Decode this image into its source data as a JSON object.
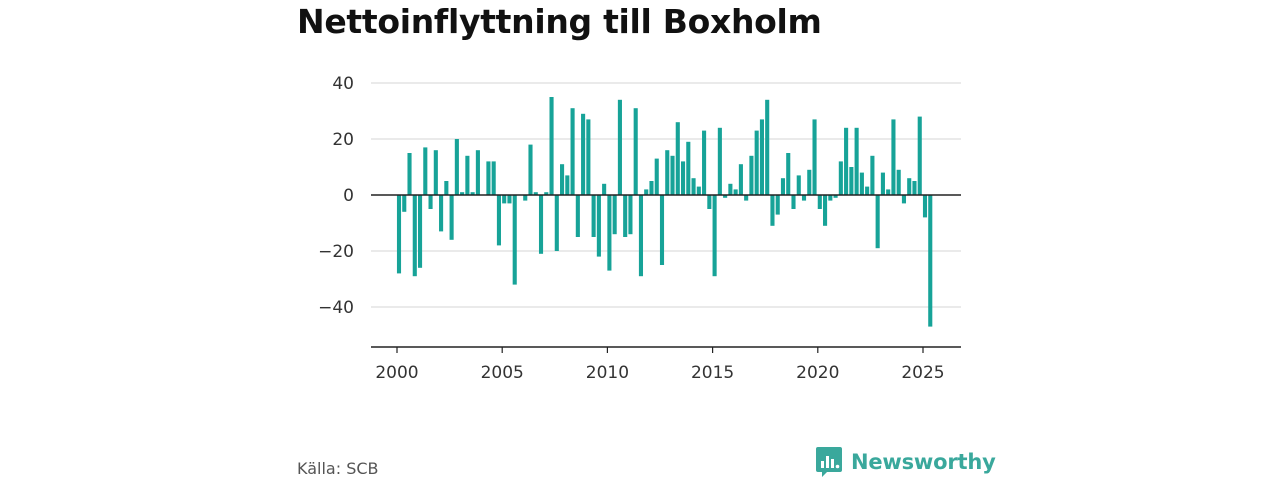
{
  "title": "Nettoinflyttning till Boxholm",
  "source": "Källa: SCB",
  "brand": "Newsworthy",
  "colors": {
    "bar": "#17a398",
    "grid": "#d6d6d6",
    "axis": "#222222",
    "brand": "#3aa89c"
  },
  "chart_data": {
    "type": "bar",
    "title": "Nettoinflyttning till Boxholm",
    "xlabel": "",
    "ylabel": "",
    "ylim": [
      -50,
      45
    ],
    "xlim": [
      2000,
      2025.5
    ],
    "grid": true,
    "x_ticks": [
      "2000",
      "2005",
      "2010",
      "2015",
      "2020",
      "2025"
    ],
    "y_ticks": [
      "40",
      "20",
      "0",
      "−20",
      "−40"
    ],
    "x": [
      "2000-Q1",
      "2000-Q2",
      "2000-Q3",
      "2000-Q4",
      "2001-Q1",
      "2001-Q2",
      "2001-Q3",
      "2001-Q4",
      "2002-Q1",
      "2002-Q2",
      "2002-Q3",
      "2002-Q4",
      "2003-Q1",
      "2003-Q2",
      "2003-Q3",
      "2003-Q4",
      "2004-Q1",
      "2004-Q2",
      "2004-Q3",
      "2004-Q4",
      "2005-Q1",
      "2005-Q2",
      "2005-Q3",
      "2005-Q4",
      "2006-Q1",
      "2006-Q2",
      "2006-Q3",
      "2006-Q4",
      "2007-Q1",
      "2007-Q2",
      "2007-Q3",
      "2007-Q4",
      "2008-Q1",
      "2008-Q2",
      "2008-Q3",
      "2008-Q4",
      "2009-Q1",
      "2009-Q2",
      "2009-Q3",
      "2009-Q4",
      "2010-Q1",
      "2010-Q2",
      "2010-Q3",
      "2010-Q4",
      "2011-Q1",
      "2011-Q2",
      "2011-Q3",
      "2011-Q4",
      "2012-Q1",
      "2012-Q2",
      "2012-Q3",
      "2012-Q4",
      "2013-Q1",
      "2013-Q2",
      "2013-Q3",
      "2013-Q4",
      "2014-Q1",
      "2014-Q2",
      "2014-Q3",
      "2014-Q4",
      "2015-Q1",
      "2015-Q2",
      "2015-Q3",
      "2015-Q4",
      "2016-Q1",
      "2016-Q2",
      "2016-Q3",
      "2016-Q4",
      "2017-Q1",
      "2017-Q2",
      "2017-Q3",
      "2017-Q4",
      "2018-Q1",
      "2018-Q2",
      "2018-Q3",
      "2018-Q4",
      "2019-Q1",
      "2019-Q2",
      "2019-Q3",
      "2019-Q4",
      "2020-Q1",
      "2020-Q2",
      "2020-Q3",
      "2020-Q4",
      "2021-Q1",
      "2021-Q2",
      "2021-Q3",
      "2021-Q4",
      "2022-Q1",
      "2022-Q2",
      "2022-Q3",
      "2022-Q4",
      "2023-Q1",
      "2023-Q2",
      "2023-Q3",
      "2023-Q4",
      "2024-Q1",
      "2024-Q2",
      "2024-Q3",
      "2024-Q4",
      "2025-Q1",
      "2025-Q2"
    ],
    "values": [
      -28,
      -6,
      15,
      -29,
      -26,
      17,
      -5,
      16,
      -13,
      5,
      -16,
      20,
      1,
      14,
      1,
      16,
      0,
      12,
      12,
      -18,
      -3,
      -3,
      -32,
      0,
      -2,
      18,
      1,
      -21,
      1,
      35,
      -20,
      11,
      7,
      31,
      -15,
      29,
      27,
      -15,
      -22,
      4,
      -27,
      -14,
      34,
      -15,
      -14,
      31,
      -29,
      2,
      5,
      13,
      -25,
      16,
      14,
      26,
      12,
      19,
      6,
      3,
      23,
      -5,
      -29,
      24,
      -1,
      4,
      2,
      11,
      -2,
      14,
      23,
      27,
      34,
      -11,
      -7,
      6,
      15,
      -5,
      7,
      -2,
      9,
      27,
      -5,
      -11,
      -2,
      -1,
      12,
      24,
      10,
      24,
      8,
      3,
      14,
      -19,
      8,
      2,
      27,
      9,
      -3,
      6,
      5,
      28,
      -8,
      -47
    ]
  }
}
